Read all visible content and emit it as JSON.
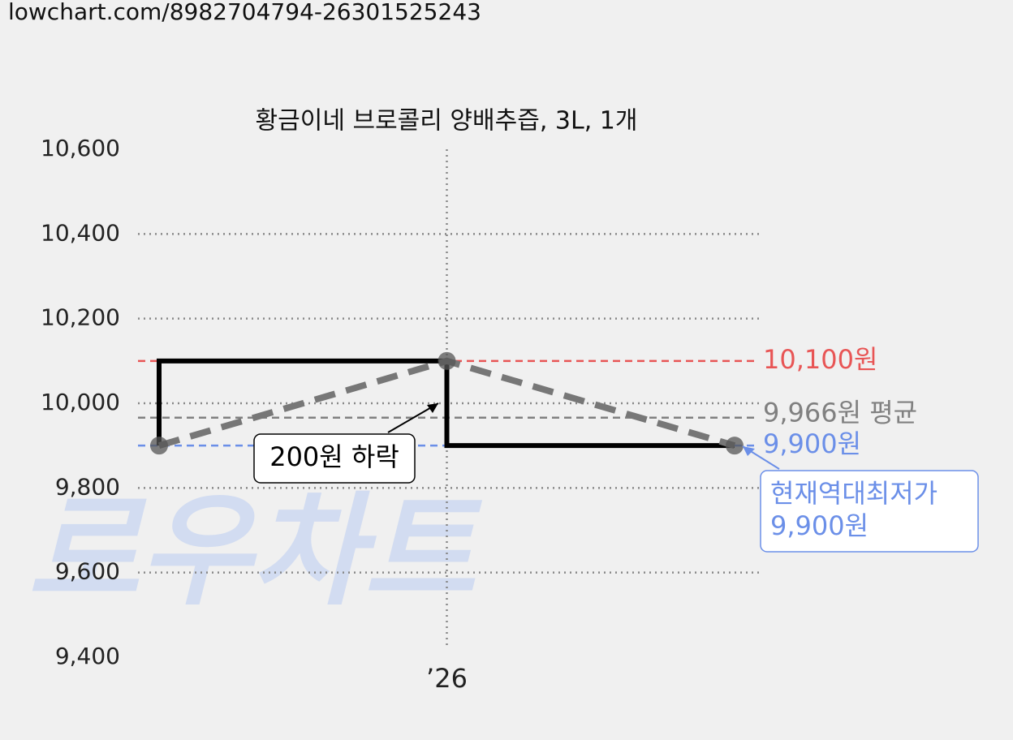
{
  "url": "lowchart.com/8982704794-26301525243",
  "chart_data": {
    "type": "line",
    "title": "황금이네 브로콜리 양배추즙, 3L, 1개",
    "categories": [
      null,
      "’26",
      null
    ],
    "series": [
      {
        "color": "#000000",
        "style": "step",
        "values": [
          9900,
          10100,
          9900
        ]
      },
      {
        "color": "#777777",
        "style": "dashed",
        "values": [
          9900,
          10100,
          9900
        ]
      }
    ],
    "ylim": [
      9400,
      10600
    ],
    "yticks": [
      {
        "value": 9400,
        "label": "9,400"
      },
      {
        "value": 9600,
        "label": "9,600"
      },
      {
        "value": 9800,
        "label": "9,800"
      },
      {
        "value": 10000,
        "label": "10,000"
      },
      {
        "value": 10200,
        "label": "10,200"
      },
      {
        "value": 10400,
        "label": "10,400"
      },
      {
        "value": 10600,
        "label": "10,600"
      }
    ],
    "grid": true,
    "reference_lines": [
      {
        "value": 10100,
        "label": "10,100원",
        "color": "#e85555"
      },
      {
        "value": 9966,
        "label": "9,966원 평균",
        "color": "#808080"
      },
      {
        "value": 9900,
        "label": "9,900원",
        "color": "#6b8fe8"
      }
    ],
    "annotations": [
      {
        "lines": [
          "200원 하락"
        ],
        "color": "#000000"
      },
      {
        "lines": [
          "현재역대최저가",
          "9,900원"
        ],
        "color": "#6b8fe8"
      }
    ],
    "watermark": "로우차트"
  }
}
